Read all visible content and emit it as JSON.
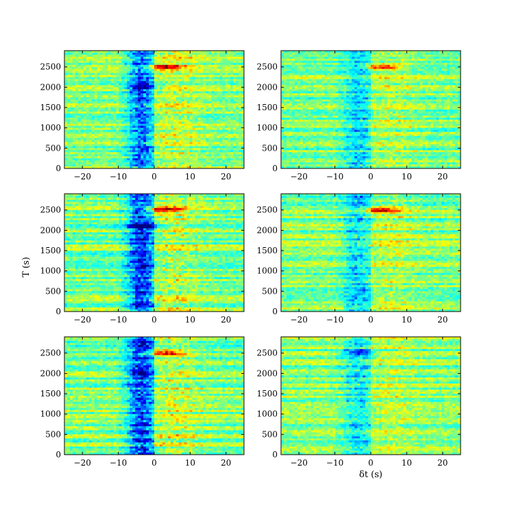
{
  "chart_data": {
    "type": "heatmap",
    "layout": "3 rows x 2 columns of panels",
    "colormap": "jet",
    "x_range": [
      -25,
      25
    ],
    "y_range": [
      0,
      2900
    ],
    "x_ticks": [
      -20,
      -10,
      0,
      10,
      20
    ],
    "y_ticks": [
      0,
      500,
      1000,
      1500,
      2000,
      2500
    ],
    "x_tick_labels": [
      "−20",
      "−10",
      "0",
      "10",
      "20"
    ],
    "y_tick_labels": [
      "0",
      "500",
      "1000",
      "1500",
      "2000",
      "2500"
    ],
    "ylabel": "T (s)",
    "xlabel": "δt (s)",
    "panels": [
      {
        "row": 1,
        "col": 1,
        "pre_zero_intensity": 0.85,
        "post_zero_intensity": 0.8,
        "features": [
          {
            "t_lag": 3,
            "T": 2500,
            "level": "high"
          },
          {
            "t_lag": -3,
            "T": 2000,
            "level": "low"
          }
        ]
      },
      {
        "row": 1,
        "col": 2,
        "pre_zero_intensity": 0.45,
        "post_zero_intensity": 0.6,
        "features": [
          {
            "t_lag": 3,
            "T": 2500,
            "level": "high"
          }
        ]
      },
      {
        "row": 2,
        "col": 1,
        "pre_zero_intensity": 1.0,
        "post_zero_intensity": 0.85,
        "features": [
          {
            "t_lag": 3,
            "T": 2500,
            "level": "high"
          },
          {
            "t_lag": -3,
            "T": 2100,
            "level": "low"
          }
        ]
      },
      {
        "row": 2,
        "col": 2,
        "pre_zero_intensity": 0.5,
        "post_zero_intensity": 0.6,
        "features": [
          {
            "t_lag": 3,
            "T": 2500,
            "level": "high"
          }
        ]
      },
      {
        "row": 3,
        "col": 1,
        "pre_zero_intensity": 1.0,
        "post_zero_intensity": 0.8,
        "features": [
          {
            "t_lag": 3,
            "T": 2500,
            "level": "high"
          },
          {
            "t_lag": -3,
            "T": 2000,
            "level": "low"
          }
        ]
      },
      {
        "row": 3,
        "col": 2,
        "pre_zero_intensity": 0.45,
        "post_zero_intensity": 0.55,
        "features": [
          {
            "t_lag": -3,
            "T": 2500,
            "level": "low"
          }
        ]
      }
    ]
  }
}
